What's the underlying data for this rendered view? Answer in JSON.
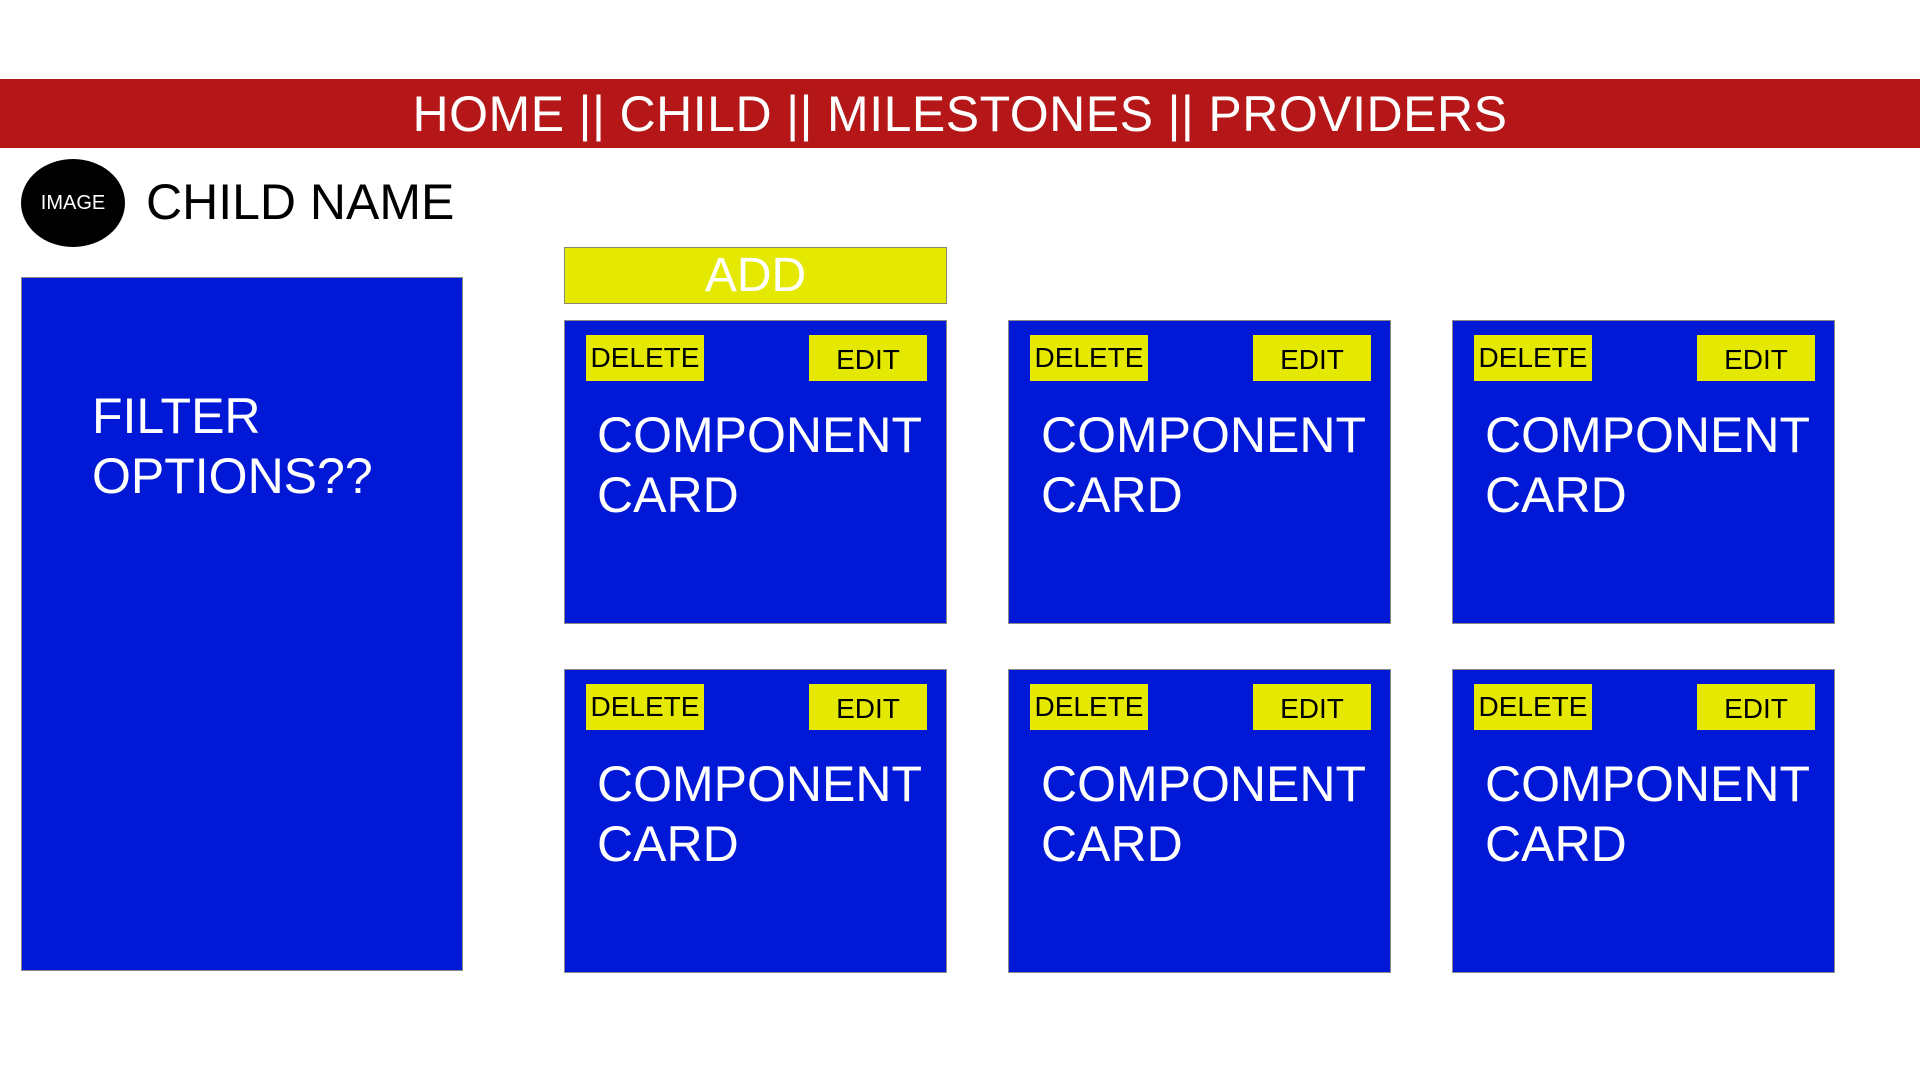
{
  "nav": {
    "items": [
      "HOME",
      "CHILD",
      "MILESTONES",
      "PROVIDERS"
    ],
    "separator": "||"
  },
  "profile": {
    "image_label": "IMAGE",
    "child_name": "CHILD NAME"
  },
  "filter": {
    "text": "FILTER\nOPTIONS??"
  },
  "add_label": "ADD",
  "cards": [
    {
      "delete_label": "DELETE",
      "edit_label": "EDIT",
      "title": "COMPONENT\nCARD"
    },
    {
      "delete_label": "DELETE",
      "edit_label": "EDIT",
      "title": "COMPONENT\nCARD"
    },
    {
      "delete_label": "DELETE",
      "edit_label": "EDIT",
      "title": "COMPONENT\nCARD"
    },
    {
      "delete_label": "DELETE",
      "edit_label": "EDIT",
      "title": "COMPONENT\nCARD"
    },
    {
      "delete_label": "DELETE",
      "edit_label": "EDIT",
      "title": "COMPONENT\nCARD"
    },
    {
      "delete_label": "DELETE",
      "edit_label": "EDIT",
      "title": "COMPONENT\nCARD"
    }
  ],
  "colors": {
    "nav_background": "#b51718",
    "panel_blue": "#0119d6",
    "button_yellow": "#e5e800"
  }
}
